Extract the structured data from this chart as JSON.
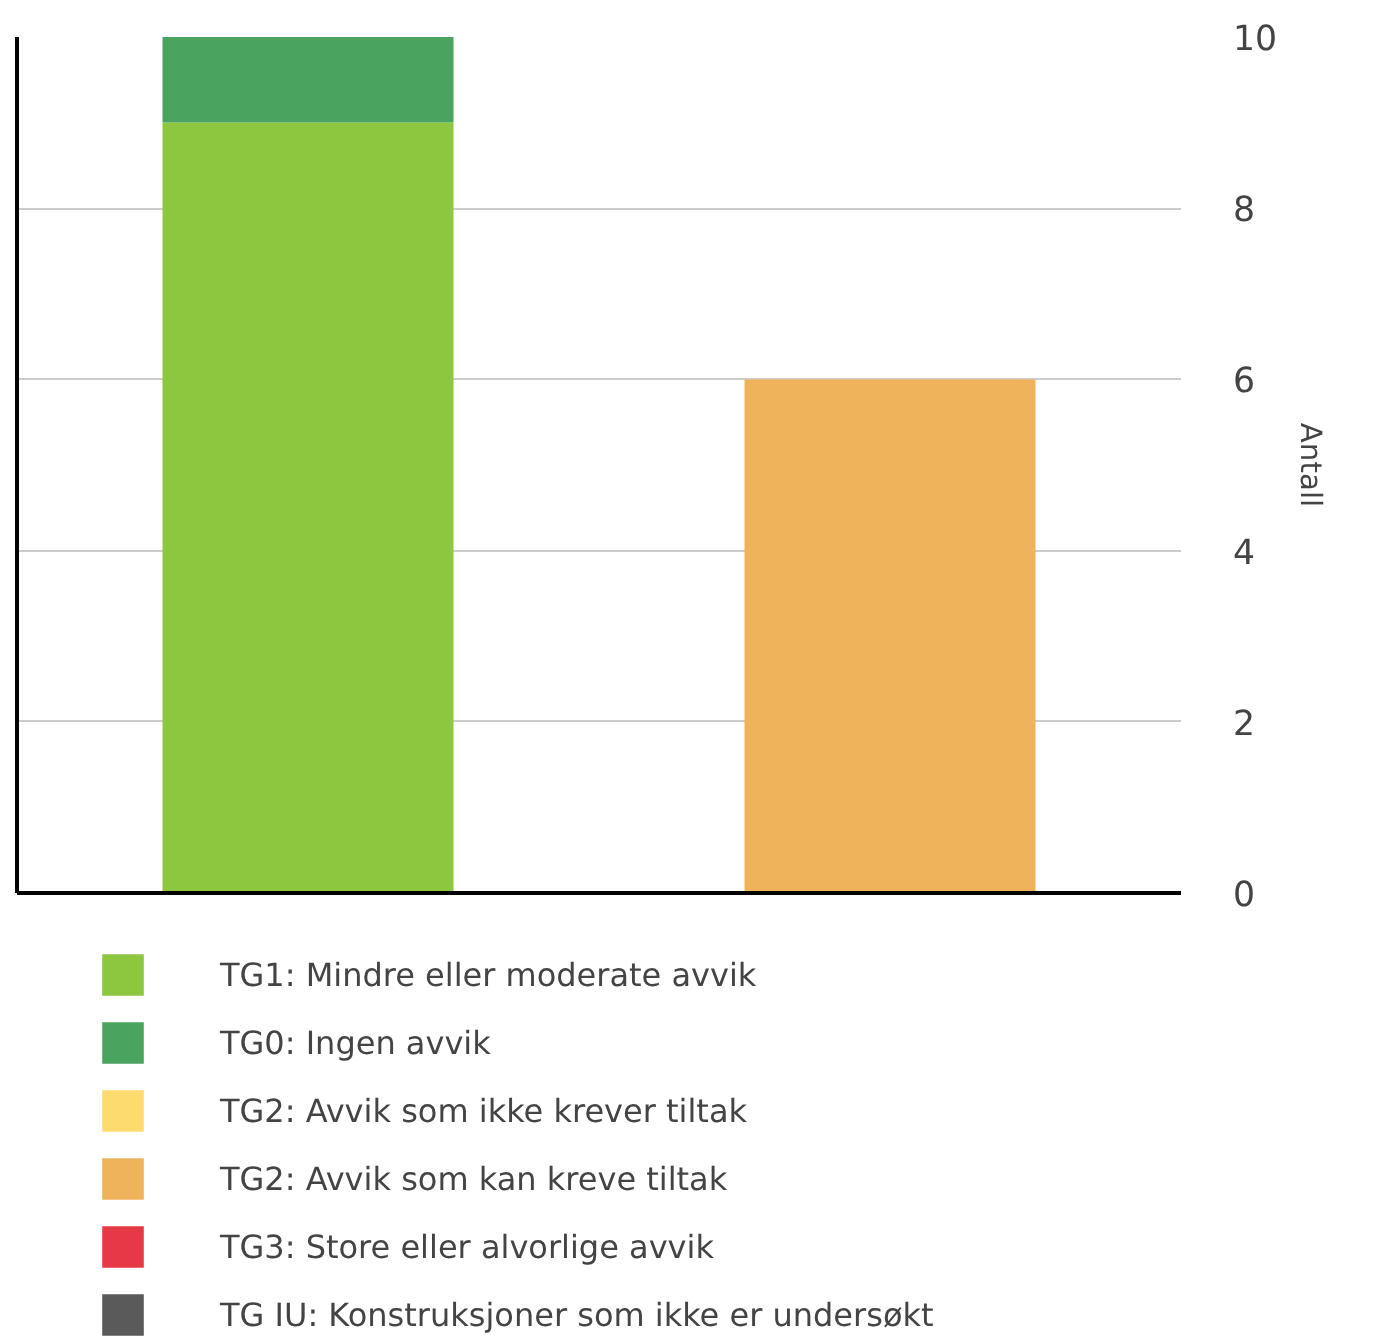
{
  "chart_data": {
    "type": "bar",
    "stacked": true,
    "categories": [
      null,
      null
    ],
    "ylabel": "Antall",
    "ylim": [
      0,
      10
    ],
    "yticks": [
      0,
      2,
      4,
      6,
      8,
      10
    ],
    "grid": "y",
    "legend": "bottom",
    "series": [
      {
        "name": "TG1: Mindre eller moderate avvik",
        "color": "#8dc63f",
        "values": [
          9,
          0
        ]
      },
      {
        "name": "TG0: Ingen avvik",
        "color": "#4aa35f",
        "values": [
          1,
          0
        ]
      },
      {
        "name": "TG2: Avvik som ikke krever tiltak",
        "color": "#fedb6f",
        "values": [
          0,
          0
        ]
      },
      {
        "name": "TG2: Avvik som kan kreve tiltak",
        "color": "#efb35c",
        "values": [
          0,
          6
        ]
      },
      {
        "name": "TG3: Store eller alvorlige avvik",
        "color": "#e63946",
        "values": [
          0,
          0
        ]
      },
      {
        "name": "TG IU: Konstruksjoner som ikke er undersøkt",
        "color": "#5a5a5a",
        "values": [
          0,
          0
        ]
      }
    ]
  }
}
